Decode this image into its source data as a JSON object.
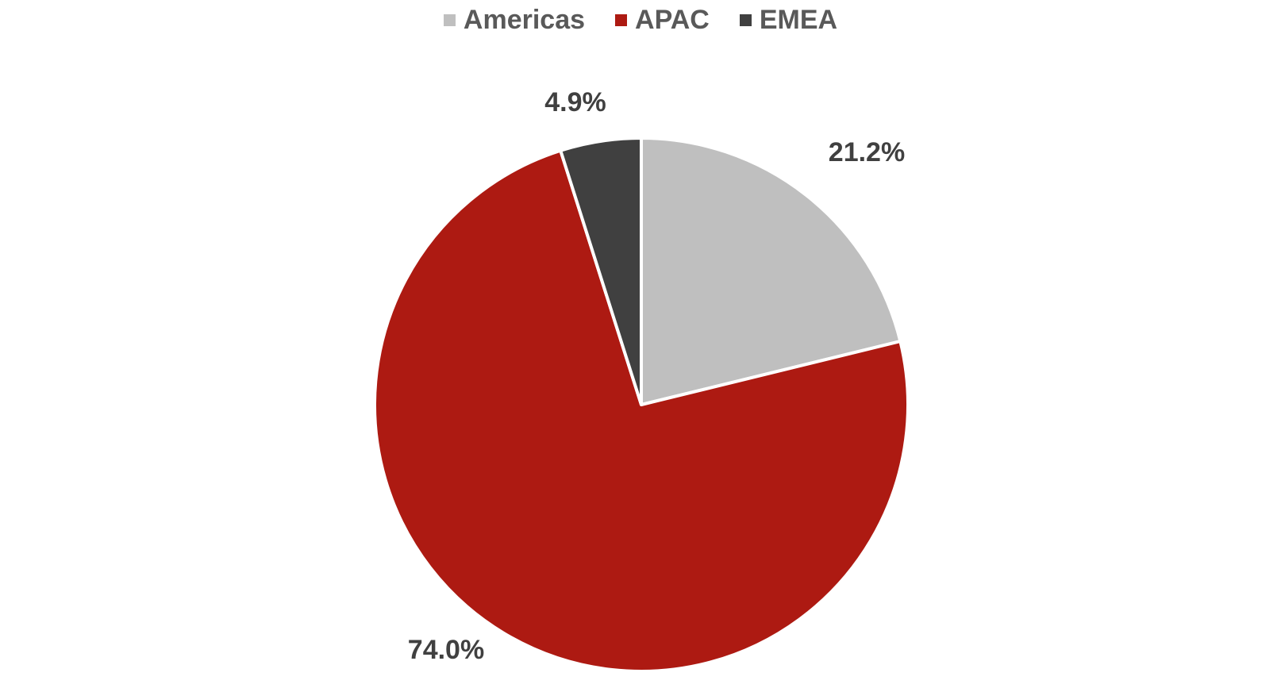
{
  "chart_data": {
    "type": "pie",
    "categories": [
      "Americas",
      "APAC",
      "EMEA"
    ],
    "values": [
      21.2,
      74.0,
      4.9
    ],
    "labels": [
      "21.2%",
      "74.0%",
      "4.9%"
    ],
    "colors": [
      "#BFBFBF",
      "#AD1A12",
      "#404040"
    ],
    "legend_placement": "top",
    "start_angle_deg": 0,
    "direction": "clockwise"
  }
}
